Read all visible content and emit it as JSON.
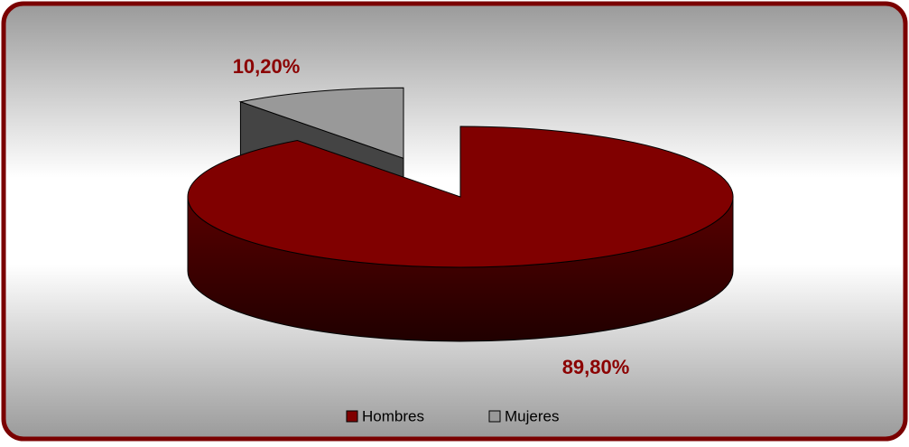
{
  "chart_data": {
    "type": "pie",
    "categories": [
      "Hombres",
      "Mujeres"
    ],
    "values": [
      89.8,
      10.2
    ],
    "value_labels": [
      "89,80%",
      "10,20%"
    ],
    "colors": [
      "#800000",
      "#999999"
    ],
    "legend": "bottom"
  }
}
